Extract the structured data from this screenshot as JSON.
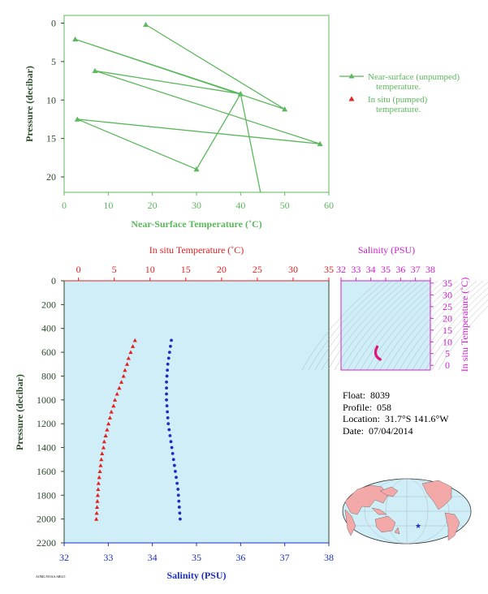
{
  "colors": {
    "near_surface": "#5cb85c",
    "insitu_temp": "#e32222",
    "salinity": "#1a2fc2",
    "salinity_axis": "#cc22cc",
    "profile_bg": "#cfeef8",
    "axis_dark": "#2b4a2b"
  },
  "float_info": {
    "float_label": "Float:",
    "float_value": "8039",
    "profile_label": "Profile:",
    "profile_value": "058",
    "location_label": "Location:",
    "location_value": "31.7°S  141.6°W",
    "date_label": "Date:",
    "date_value": "07/04/2014"
  },
  "footnote": "AOML/NOAA ARGO",
  "map": {
    "marker_icon": "star-icon",
    "marker_lat": -31.7,
    "marker_lon": -141.6
  },
  "chart_data": [
    {
      "type": "line",
      "xlabel": "Near-Surface Temperature (˚C)",
      "ylabel": "Pressure (decibar)",
      "xlim": [
        0,
        60
      ],
      "ylim": [
        22,
        -1
      ],
      "xticks": [
        0,
        10,
        20,
        30,
        40,
        50,
        60
      ],
      "yticks": [
        0,
        5,
        10,
        15,
        20
      ],
      "legend_position": "right",
      "legend": [
        {
          "name": "Near-surface (unpumped)",
          "name2": "temperature.",
          "marker": "triangle",
          "color": "#5cb85c"
        },
        {
          "name": "In situ (pumped)",
          "name2": "temperature.",
          "marker": "triangle",
          "color": "#e32222"
        }
      ],
      "series": [
        {
          "name": "Near-surface (unpumped) temperature.",
          "points": [
            [
              18.5,
              0.2
            ],
            [
              50,
              11.2
            ],
            [
              2.5,
              2.1
            ],
            [
              40,
              9.2
            ],
            [
              7,
              6.2
            ],
            [
              58,
              15.7
            ],
            [
              3,
              12.5
            ],
            [
              30,
              19
            ],
            [
              40,
              9.2
            ],
            [
              44.5,
              22
            ]
          ]
        }
      ]
    },
    {
      "type": "scatter",
      "title_top": "In situ Temperature (˚C)",
      "xlabel_bottom": "Salinity (PSU)",
      "ylabel": "Pressure (decibar)",
      "temp_lim": [
        -2,
        35
      ],
      "temp_ticks": [
        0,
        5,
        10,
        15,
        20,
        25,
        30,
        35
      ],
      "sal_lim": [
        32,
        38
      ],
      "sal_ticks": [
        32,
        33,
        34,
        35,
        36,
        37,
        38
      ],
      "ylim": [
        0,
        2200
      ],
      "yticks": [
        0,
        200,
        400,
        600,
        800,
        1000,
        1200,
        1400,
        1600,
        1800,
        2000,
        2200
      ],
      "series": [
        {
          "name": "In situ Temperature",
          "pressure": [
            500,
            550,
            600,
            650,
            700,
            750,
            800,
            850,
            900,
            950,
            1000,
            1050,
            1100,
            1150,
            1200,
            1250,
            1300,
            1350,
            1400,
            1450,
            1500,
            1550,
            1600,
            1650,
            1700,
            1750,
            1800,
            1850,
            1900,
            1950,
            2000
          ],
          "values": [
            7.9,
            7.6,
            7.3,
            7.0,
            6.8,
            6.5,
            6.3,
            6.0,
            5.7,
            5.4,
            5.1,
            4.9,
            4.6,
            4.4,
            4.2,
            4.0,
            3.8,
            3.6,
            3.5,
            3.3,
            3.2,
            3.1,
            3.0,
            2.9,
            2.8,
            2.75,
            2.7,
            2.65,
            2.6,
            2.55,
            2.5
          ]
        },
        {
          "name": "Salinity",
          "pressure": [
            500,
            550,
            600,
            650,
            700,
            750,
            800,
            850,
            900,
            950,
            1000,
            1050,
            1100,
            1150,
            1200,
            1250,
            1300,
            1350,
            1400,
            1450,
            1500,
            1550,
            1600,
            1650,
            1700,
            1750,
            1800,
            1850,
            1900,
            1950,
            2000
          ],
          "values": [
            34.43,
            34.41,
            34.39,
            34.37,
            34.35,
            34.34,
            34.33,
            34.32,
            34.32,
            34.32,
            34.32,
            34.33,
            34.34,
            34.35,
            34.36,
            34.38,
            34.4,
            34.42,
            34.44,
            34.46,
            34.48,
            34.5,
            34.52,
            34.54,
            34.56,
            34.58,
            34.59,
            34.6,
            34.61,
            34.62,
            34.63
          ]
        }
      ]
    },
    {
      "type": "scatter",
      "title": "Salinity (PSU)",
      "ylabel": "In situ Temperature (˚C)",
      "xlim": [
        32,
        38
      ],
      "ylim": [
        -2,
        36
      ],
      "xticks": [
        32,
        33,
        34,
        35,
        36,
        37,
        38
      ],
      "yticks": [
        0,
        5,
        10,
        15,
        20,
        25,
        30,
        35
      ],
      "series": [
        {
          "name": "T-S",
          "points": [
            [
              34.43,
              7.9
            ],
            [
              34.39,
              7.3
            ],
            [
              34.35,
              6.8
            ],
            [
              34.33,
              6.3
            ],
            [
              34.32,
              5.7
            ],
            [
              34.32,
              5.1
            ],
            [
              34.34,
              4.6
            ],
            [
              34.36,
              4.2
            ],
            [
              34.4,
              3.8
            ],
            [
              34.44,
              3.5
            ],
            [
              34.48,
              3.2
            ],
            [
              34.52,
              3.0
            ],
            [
              34.56,
              2.8
            ],
            [
              34.59,
              2.7
            ],
            [
              34.61,
              2.6
            ],
            [
              34.63,
              2.5
            ]
          ]
        }
      ]
    }
  ]
}
